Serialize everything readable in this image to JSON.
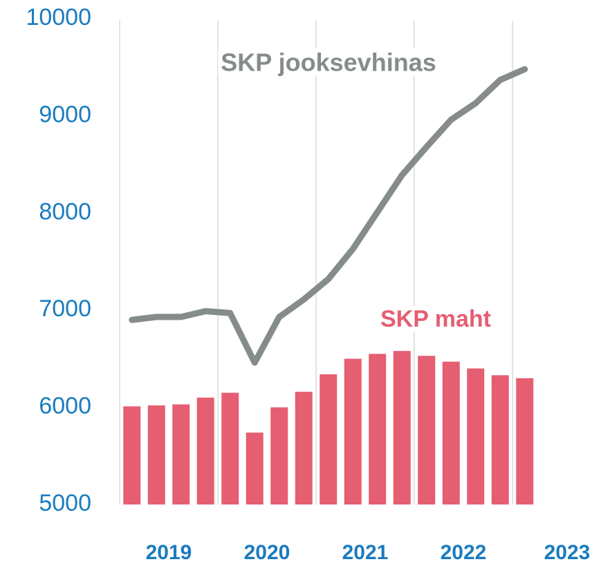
{
  "chart_data": {
    "type": "combo",
    "categories": [
      null,
      null,
      null,
      null,
      null,
      null,
      null,
      null,
      null,
      null,
      null,
      null,
      null,
      null,
      null,
      null,
      null
    ],
    "year_labels": [
      "2019",
      "2020",
      "2021",
      "2022",
      "2023"
    ],
    "ylim": [
      5000,
      10000
    ],
    "yticks": [
      5000,
      6000,
      7000,
      8000,
      9000,
      10000
    ],
    "series": [
      {
        "name": "SKP maht",
        "type": "bar",
        "color": "#e55e72",
        "values": [
          6010,
          6020,
          6030,
          6100,
          6150,
          5740,
          6000,
          6160,
          6340,
          6500,
          6550,
          6580,
          6530,
          6470,
          6400,
          6330,
          6300
        ]
      },
      {
        "name": "SKP jooksevhinas",
        "type": "line",
        "color": "#868b8c",
        "values": [
          6900,
          6930,
          6930,
          6990,
          6970,
          6460,
          6930,
          7110,
          7320,
          7630,
          8010,
          8390,
          8680,
          8960,
          9130,
          9370,
          9480
        ]
      }
    ]
  }
}
